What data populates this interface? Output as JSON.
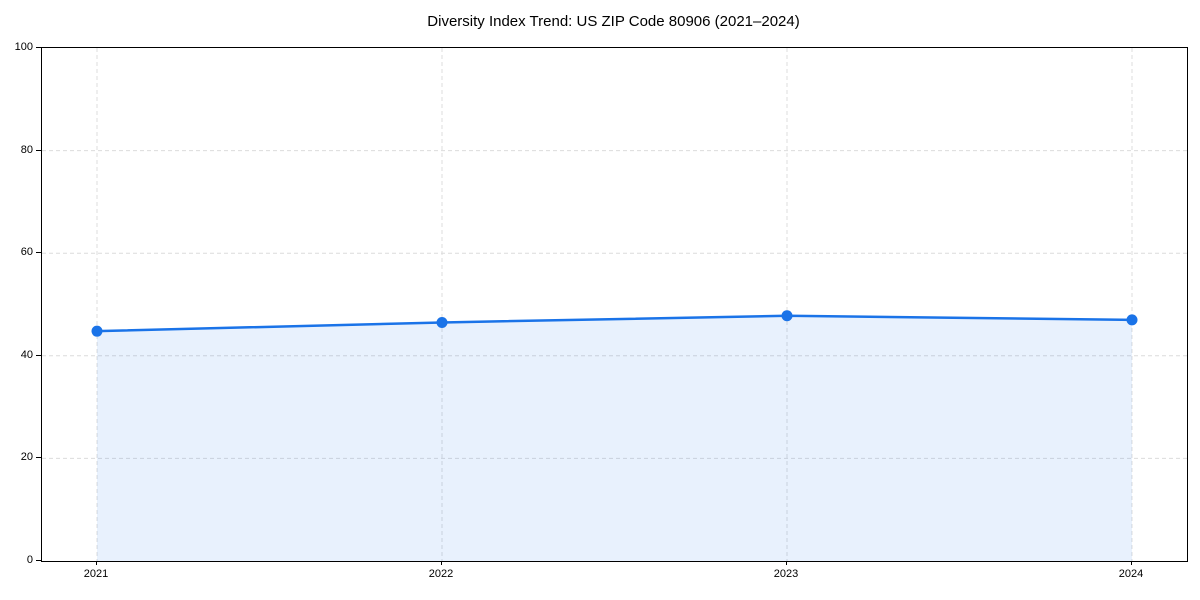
{
  "chart_data": {
    "type": "line",
    "title": "Diversity Index Trend: US ZIP Code 80906 (2021–2024)",
    "x": [
      "2021",
      "2022",
      "2023",
      "2024"
    ],
    "series": [
      {
        "name": "Diversity Index",
        "values": [
          44.8,
          46.5,
          47.8,
          47.0
        ]
      }
    ],
    "xlabel": "",
    "ylabel": "",
    "ylim": [
      0,
      100
    ],
    "yticks": [
      0,
      20,
      40,
      60,
      80,
      100
    ],
    "grid": "both-dashed",
    "legend_position": "none",
    "area_fill_to_zero": true,
    "colors": {
      "line": "#1a73e8",
      "marker": "#1a73e8",
      "fill": "#1a73e8",
      "fill_opacity": 0.1,
      "grid": "#dcdcdc",
      "axis": "#000000",
      "text": "#000000",
      "background": "#ffffff"
    }
  }
}
